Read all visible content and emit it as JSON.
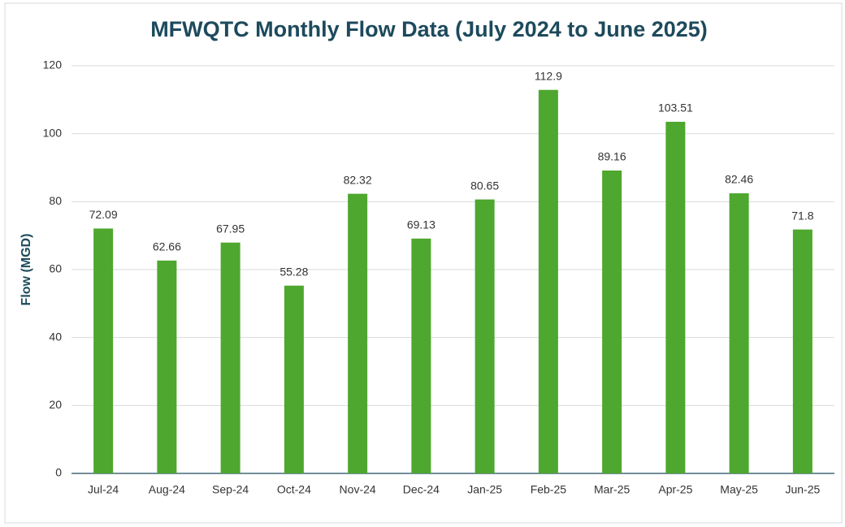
{
  "chart_data": {
    "type": "bar",
    "title": "MFWQTC Monthly Flow Data (July 2024 to June 2025)",
    "y_label": "Flow (MGD)",
    "categories": [
      "Jul-24",
      "Aug-24",
      "Sep-24",
      "Oct-24",
      "Nov-24",
      "Dec-24",
      "Jan-25",
      "Feb-25",
      "Mar-25",
      "Apr-25",
      "May-25",
      "Jun-25"
    ],
    "values": [
      72.09,
      62.66,
      67.95,
      55.28,
      82.32,
      69.13,
      80.65,
      112.9,
      89.16,
      103.51,
      82.46,
      71.8
    ],
    "color": "#4ea72e",
    "ylim": [
      0,
      120
    ],
    "yticks": [
      0,
      20,
      40,
      60,
      80,
      100,
      120
    ],
    "grid": true
  }
}
